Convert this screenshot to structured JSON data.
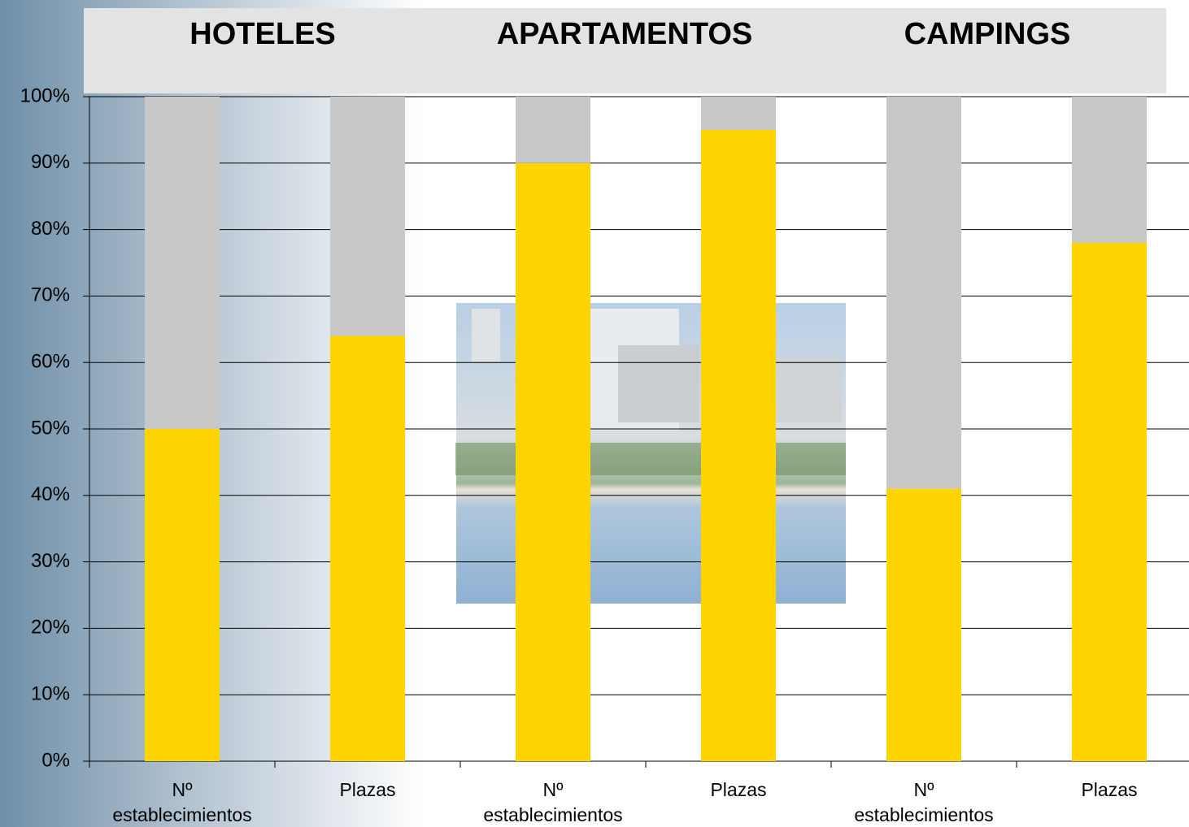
{
  "chart_data": {
    "type": "stacked_bar",
    "groups": [
      "HOTELES",
      "APARTAMENTOS",
      "CAMPINGS"
    ],
    "categories": [
      "Nº establecimientos",
      "Plazas",
      "Nº establecimientos",
      "Plazas",
      "Nº establecimientos",
      "Plazas"
    ],
    "series": [
      {
        "color": "#ffd400",
        "values": [
          50,
          64,
          90,
          95,
          41,
          78
        ]
      },
      {
        "color": "#c8c8c8",
        "values": [
          50,
          36,
          10,
          5,
          59,
          22
        ]
      }
    ],
    "ylim": [
      0,
      100
    ],
    "yticks": [
      {
        "value": 0,
        "label": "0%"
      },
      {
        "value": 10,
        "label": "10%"
      },
      {
        "value": 20,
        "label": "20%"
      },
      {
        "value": 30,
        "label": "30%"
      },
      {
        "value": 40,
        "label": "40%"
      },
      {
        "value": 50,
        "label": "50%"
      },
      {
        "value": 60,
        "label": "60%"
      },
      {
        "value": 70,
        "label": "70%"
      },
      {
        "value": 80,
        "label": "80%"
      },
      {
        "value": 90,
        "label": "90%"
      },
      {
        "value": 100,
        "label": "100%"
      }
    ],
    "grid": true
  }
}
